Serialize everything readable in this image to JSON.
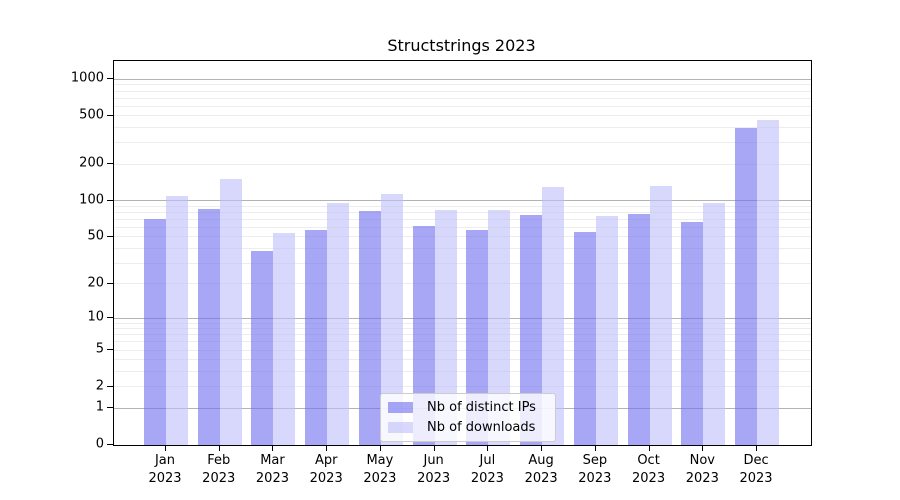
{
  "figure": {
    "background": "#ffffff",
    "text_color": "#000000",
    "axis_color": "#000000"
  },
  "chart_data": {
    "type": "bar",
    "title": "Structstrings 2023",
    "y_scale": "log1p",
    "ylim": [
      0,
      1400
    ],
    "months": [
      "Jan",
      "Feb",
      "Mar",
      "Apr",
      "May",
      "Jun",
      "Jul",
      "Aug",
      "Sep",
      "Oct",
      "Nov",
      "Dec"
    ],
    "year": "2023",
    "series": [
      {
        "name": "Nb of distinct IPs",
        "base_color": "#6c6cf0",
        "values": [
          71,
          86,
          38,
          57,
          82,
          62,
          57,
          76,
          55,
          78,
          67,
          397
        ]
      },
      {
        "name": "Nb of downloads",
        "base_color": "#bebefa",
        "values": [
          110,
          152,
          54,
          95,
          114,
          83,
          84,
          131,
          75,
          132,
          96,
          460
        ]
      }
    ],
    "bar_alpha": 0.6,
    "y_ticks": [
      1000,
      500,
      200,
      100,
      50,
      20,
      10,
      5,
      2,
      1,
      0
    ],
    "grid": {
      "major_ticks": [
        1,
        10,
        100,
        1000
      ],
      "major_color": "#b3b3b3",
      "minor_color": "#ededed"
    },
    "legend": {
      "position": "bottom-center",
      "background": "rgba(255,255,255,0.8)",
      "border_color": "#cccccc"
    }
  }
}
